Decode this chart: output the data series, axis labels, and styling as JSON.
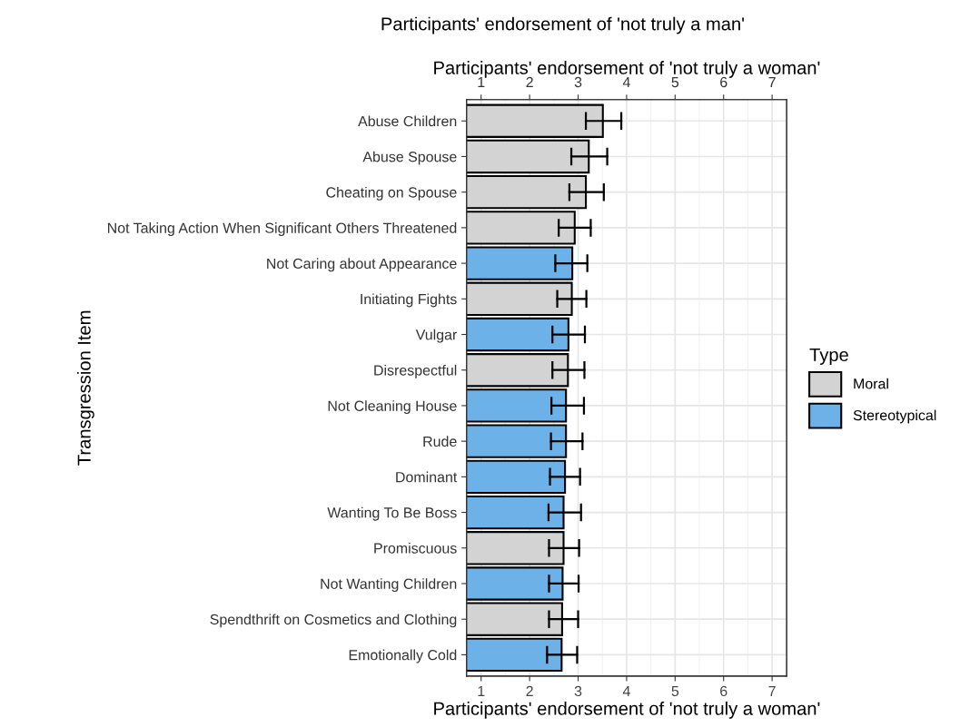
{
  "chart_data": {
    "type": "bar",
    "orientation": "horizontal",
    "title": "Participants' endorsement of 'not truly a man'",
    "x2label": "Participants' endorsement of 'not truly a woman'",
    "xlabel": "Participants' endorsement of 'not truly a woman'",
    "ylabel": "Transgression Item",
    "legend_title": "Type",
    "categories": [
      "Abuse Children",
      "Abuse Spouse",
      "Cheating on Spouse",
      "Not Taking Action When Significant Others Threatened",
      "Not Caring about Appearance",
      "Initiating Fights",
      "Vulgar",
      "Disrespectful",
      "Not Cleaning House",
      "Rude",
      "Dominant",
      "Wanting To Be Boss",
      "Promiscuous",
      "Not Wanting Children",
      "Spendthrift on Cosmetics and Clothing",
      "Emotionally Cold"
    ],
    "series": [
      {
        "name": "Moral",
        "color": "#d3d3d3",
        "values": [
          3.51,
          3.22,
          3.16,
          2.93,
          null,
          2.87,
          null,
          2.79,
          null,
          null,
          null,
          null,
          2.7,
          null,
          2.67,
          null
        ],
        "errors": [
          [
            3.16,
            3.89
          ],
          [
            2.86,
            3.6
          ],
          [
            2.82,
            3.53
          ],
          [
            2.6,
            3.26
          ],
          null,
          [
            2.57,
            3.17
          ],
          null,
          [
            2.47,
            3.13
          ],
          null,
          null,
          null,
          null,
          [
            2.4,
            3.02
          ],
          null,
          [
            2.4,
            3.0
          ],
          null
        ]
      },
      {
        "name": "Stereotypical",
        "color": "#6cb2e8",
        "values": [
          null,
          null,
          null,
          null,
          2.88,
          null,
          2.8,
          null,
          2.75,
          2.75,
          2.73,
          2.7,
          null,
          2.68,
          null,
          2.66
        ],
        "errors": [
          null,
          null,
          null,
          null,
          [
            2.53,
            3.19
          ],
          null,
          [
            2.47,
            3.14
          ],
          null,
          [
            2.45,
            3.12
          ],
          [
            2.44,
            3.09
          ],
          [
            2.42,
            3.04
          ],
          [
            2.39,
            3.06
          ],
          null,
          [
            2.4,
            3.01
          ],
          null,
          [
            2.36,
            2.98
          ]
        ]
      }
    ],
    "xlim": [
      0.7,
      7.3
    ],
    "xticks": [
      1,
      2,
      3,
      4,
      5,
      6,
      7
    ],
    "x2lim": [
      0.7,
      7.3
    ],
    "x2ticks": [
      1,
      2,
      3,
      4,
      5,
      6,
      7
    ],
    "grid": true,
    "legend": "right"
  }
}
